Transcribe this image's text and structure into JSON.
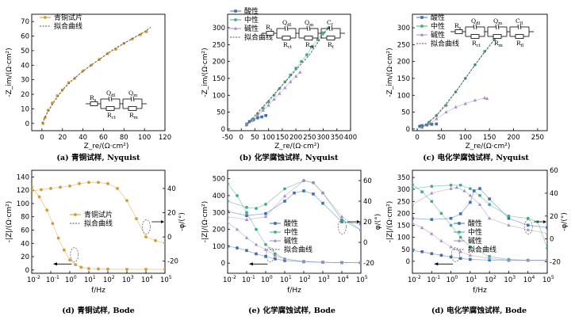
{
  "colors": {
    "bronze": "#d49a35",
    "acid": "#3c6fb4",
    "neutral": "#41ad84",
    "alkaline": "#a98ac8",
    "fit": "#555555"
  },
  "panels": [
    {
      "id": "a",
      "kind": "nyquist",
      "caption": "(a) 青铜试样, Nyquist",
      "xlabel": "Z_re/(Ω·cm²)",
      "ylabel": "-Z_im/(Ω·cm²)",
      "xlim": [
        -10,
        120
      ],
      "ylim": [
        -5,
        75
      ],
      "xticks": [
        0,
        20,
        40,
        60,
        80,
        100,
        120
      ],
      "yticks": [
        0,
        10,
        20,
        30,
        40,
        50,
        60,
        70
      ],
      "legend": [
        "青铜试片",
        "拟合曲线"
      ],
      "circuit": [
        "Rs",
        "Qdl",
        "Qm",
        "Rct",
        "Rm"
      ]
    },
    {
      "id": "b",
      "kind": "nyquist",
      "caption": "(b) 化学腐蚀试样, Nyquist",
      "xlabel": "Z_re/(Ω·cm²)",
      "ylabel": "-Z_im/(Ω·cm²)",
      "xlim": [
        -50,
        400
      ],
      "ylim": [
        -5,
        340
      ],
      "xticks": [
        -50,
        0,
        50,
        100,
        150,
        200,
        250,
        300,
        350,
        400
      ],
      "yticks": [
        0,
        50,
        100,
        150,
        200,
        250,
        300
      ],
      "legend": [
        "酸性",
        "中性",
        "碱性",
        "拟合曲线"
      ],
      "circuit": [
        "Rs",
        "Qdl",
        "Qm",
        "Cf",
        "Rct",
        "Rm",
        "Rf"
      ]
    },
    {
      "id": "c",
      "kind": "nyquist",
      "caption": "(c) 电化学腐蚀试样, Nyquist",
      "xlabel": "Z_re/(Ω·cm²)",
      "ylabel": "-Z_im/(Ω·cm²)",
      "xlim": [
        -10,
        270
      ],
      "ylim": [
        -5,
        340
      ],
      "xticks": [
        0,
        50,
        100,
        150,
        200,
        250
      ],
      "yticks": [
        0,
        50,
        100,
        150,
        200,
        250,
        300
      ],
      "legend": [
        "酸性",
        "中性",
        "碱性",
        "拟合曲线"
      ],
      "circuit": [
        "Rs",
        "Qdl",
        "Qm",
        "Cfl",
        "Rct",
        "Rm",
        "Rfl"
      ]
    },
    {
      "id": "d",
      "kind": "bode",
      "caption": "(d) 青铜试样, Bode",
      "xlabel": "f/Hz",
      "ylabel": "-|Z|/(Ω·cm²)",
      "y2label": "-φ/(°)",
      "ylim": [
        -5,
        150
      ],
      "y2lim": [
        -30,
        55
      ],
      "yticks": [
        0,
        20,
        40,
        60,
        80,
        100,
        120,
        140
      ],
      "y2ticks": [
        -20,
        0,
        20,
        40
      ],
      "legend": [
        "青铜试片",
        "拟合曲线"
      ]
    },
    {
      "id": "e",
      "kind": "bode",
      "caption": "(e) 化学腐蚀试样, Bode",
      "xlabel": "f/Hz",
      "ylabel": "-|Z|/(Ω·cm²)",
      "y2label": "φ/(°)",
      "ylim": [
        -60,
        550
      ],
      "y2lim": [
        -30,
        70
      ],
      "yticks": [
        0,
        100,
        200,
        300,
        400,
        500
      ],
      "y2ticks": [
        -20,
        0,
        20,
        40,
        60
      ],
      "legend": [
        "酸性",
        "中性",
        "碱性",
        "拟合曲线"
      ]
    },
    {
      "id": "f",
      "kind": "bode",
      "caption": "(d) 电化学腐蚀试样, Bode",
      "xlabel": "f/Hz",
      "ylabel": "-|Z|/(Ω·cm²)",
      "y2label": "-φ/(°)",
      "ylim": [
        -50,
        380
      ],
      "y2lim": [
        -30,
        60
      ],
      "yticks": [
        0,
        50,
        100,
        150,
        200,
        250,
        300,
        350
      ],
      "y2ticks": [
        -20,
        0,
        20,
        40,
        60
      ],
      "legend": [
        "酸性",
        "中性",
        "碱性",
        "拟合曲线"
      ]
    }
  ],
  "chart_data": [
    {
      "type": "scatter",
      "panel": "a",
      "series": [
        {
          "name": "青铜试片",
          "x": [
            1,
            3,
            6,
            10,
            15,
            20,
            26,
            32,
            40,
            48,
            56,
            64,
            72,
            80,
            88,
            96,
            102
          ],
          "y": [
            0,
            4,
            9,
            14,
            19,
            23,
            28,
            31,
            36,
            40,
            44,
            48,
            51,
            55,
            58,
            61,
            63
          ]
        },
        {
          "name": "拟合曲线",
          "x": [
            0,
            5,
            12,
            20,
            30,
            40,
            50,
            60,
            70,
            80,
            90,
            100,
            106
          ],
          "y": [
            0,
            7,
            15,
            23,
            30,
            36,
            41,
            46,
            51,
            55,
            59,
            63,
            66
          ]
        }
      ]
    },
    {
      "type": "scatter",
      "panel": "b",
      "series": [
        {
          "name": "酸性",
          "x": [
            20,
            30,
            45,
            60,
            75,
            90
          ],
          "y": [
            15,
            22,
            28,
            33,
            36,
            40
          ]
        },
        {
          "name": "中性",
          "x": [
            20,
            40,
            60,
            80,
            100,
            120,
            140,
            160,
            180,
            200,
            220,
            240,
            260,
            280,
            300,
            320
          ],
          "y": [
            15,
            28,
            45,
            62,
            80,
            100,
            120,
            140,
            160,
            180,
            200,
            220,
            245,
            265,
            285,
            300
          ]
        },
        {
          "name": "碱性",
          "x": [
            20,
            40,
            60,
            80,
            100,
            120,
            140,
            160,
            180,
            200,
            215
          ],
          "y": [
            12,
            25,
            40,
            55,
            70,
            88,
            105,
            122,
            140,
            156,
            168
          ]
        },
        {
          "name": "拟合曲线",
          "x": [
            15,
            50,
            100,
            150,
            200,
            250,
            300,
            320
          ],
          "y": [
            8,
            40,
            85,
            130,
            175,
            220,
            280,
            300
          ]
        }
      ]
    },
    {
      "type": "scatter",
      "panel": "c",
      "series": [
        {
          "name": "酸性",
          "x": [
            5,
            10,
            20,
            30,
            40
          ],
          "y": [
            8,
            10,
            12,
            14,
            15
          ]
        },
        {
          "name": "中性",
          "x": [
            10,
            25,
            40,
            60,
            80,
            100,
            120,
            140,
            160
          ],
          "y": [
            5,
            20,
            40,
            70,
            110,
            150,
            190,
            230,
            265
          ]
        },
        {
          "name": "碱性",
          "x": [
            10,
            25,
            40,
            60,
            80,
            100,
            120,
            140,
            145
          ],
          "y": [
            5,
            15,
            30,
            50,
            65,
            75,
            85,
            92,
            90
          ]
        },
        {
          "name": "拟合曲线",
          "x": [
            10,
            40,
            80,
            120,
            160
          ],
          "y": [
            5,
            40,
            110,
            190,
            265
          ]
        }
      ]
    },
    {
      "type": "line",
      "panel": "d",
      "x_scale": "log",
      "xlim": [
        -2,
        5
      ],
      "xticks": [
        -2,
        -1,
        0,
        1,
        2,
        3,
        4,
        5
      ],
      "series": [
        {
          "name": "青铜试片 |Z|",
          "axis": "left",
          "log_f": [
            -2,
            -1.6,
            -1.2,
            -0.9,
            -0.6,
            -0.3,
            0,
            0.3,
            0.6,
            1,
            1.5,
            2,
            3,
            4,
            5
          ],
          "values": [
            125,
            110,
            90,
            70,
            48,
            30,
            15,
            8,
            4,
            2,
            1.5,
            1.2,
            1,
            1,
            1
          ]
        },
        {
          "name": "青铜试片 -φ",
          "axis": "right",
          "log_f": [
            -2,
            -1.5,
            -1,
            -0.5,
            0,
            0.5,
            1,
            1.5,
            2,
            2.5,
            3,
            3.5,
            4,
            4.5,
            5
          ],
          "values": [
            38,
            39,
            40,
            41,
            42,
            44,
            45,
            45,
            44,
            40,
            30,
            15,
            0,
            -3,
            -5
          ]
        }
      ]
    },
    {
      "type": "line",
      "panel": "e",
      "x_scale": "log",
      "xlim": [
        -2,
        5
      ],
      "xticks": [
        -2,
        -1,
        0,
        1,
        2,
        3,
        4,
        5
      ],
      "series": [
        {
          "name": "酸性 |Z|",
          "axis": "left",
          "log_f": [
            -2,
            -1.5,
            -1,
            -0.5,
            0,
            0.5,
            1,
            2,
            3,
            4,
            5
          ],
          "values": [
            100,
            90,
            75,
            55,
            40,
            25,
            15,
            8,
            5,
            3,
            3
          ]
        },
        {
          "name": "中性 |Z|",
          "axis": "left",
          "log_f": [
            -2,
            -1.5,
            -1,
            -0.5,
            0,
            0.5,
            1,
            2,
            3,
            4,
            5
          ],
          "values": [
            470,
            400,
            300,
            200,
            110,
            55,
            25,
            10,
            5,
            3,
            3
          ]
        },
        {
          "name": "碱性 |Z|",
          "axis": "left",
          "log_f": [
            -2,
            -1.5,
            -1,
            -0.5,
            0,
            0.5,
            1,
            2,
            3,
            4,
            5
          ],
          "values": [
            240,
            200,
            150,
            110,
            80,
            45,
            25,
            10,
            5,
            3,
            3
          ]
        },
        {
          "name": "酸性 φ",
          "axis": "right",
          "log_f": [
            -2,
            -1,
            0,
            1,
            1.5,
            2,
            2.5,
            3,
            4,
            5
          ],
          "values": [
            30,
            26,
            28,
            40,
            48,
            50,
            47,
            38,
            20,
            18
          ]
        },
        {
          "name": "中性 φ",
          "axis": "right",
          "log_f": [
            -2,
            -1,
            -0.5,
            0,
            1,
            2,
            2.5,
            3,
            4,
            5
          ],
          "values": [
            40,
            34,
            33,
            37,
            52,
            60,
            58,
            48,
            22,
            12
          ]
        },
        {
          "name": "碱性 φ",
          "axis": "right",
          "log_f": [
            -2,
            -1,
            0,
            1,
            2,
            2.5,
            3,
            4,
            5
          ],
          "values": [
            25,
            22,
            25,
            45,
            60,
            58,
            48,
            25,
            12
          ]
        }
      ]
    },
    {
      "type": "line",
      "panel": "f",
      "x_scale": "log",
      "xlim": [
        -2,
        5
      ],
      "xticks": [
        -2,
        -1,
        0,
        1,
        2,
        3,
        4,
        5
      ],
      "series": [
        {
          "name": "酸性 |Z|",
          "axis": "left",
          "log_f": [
            -2,
            -1.5,
            -1,
            -0.5,
            0,
            0.5,
            1,
            2,
            3,
            4,
            5
          ],
          "values": [
            45,
            40,
            32,
            25,
            18,
            12,
            8,
            5,
            4,
            4,
            4
          ]
        },
        {
          "name": "中性 |Z|",
          "axis": "left",
          "log_f": [
            -2,
            -1.5,
            -1,
            -0.5,
            0,
            0.5,
            1,
            2,
            3,
            4,
            5
          ],
          "values": [
            320,
            290,
            250,
            200,
            150,
            100,
            60,
            20,
            8,
            4,
            4
          ]
        },
        {
          "name": "碱性 |Z|",
          "axis": "left",
          "log_f": [
            -2,
            -1.5,
            -1,
            -0.5,
            0,
            0.5,
            1,
            2,
            3,
            4,
            5
          ],
          "values": [
            160,
            140,
            115,
            85,
            60,
            40,
            25,
            12,
            5,
            4,
            4
          ]
        },
        {
          "name": "酸性 -φ",
          "axis": "right",
          "log_f": [
            -2,
            -1,
            0,
            0.5,
            1,
            1.2,
            1.5,
            2,
            3,
            4,
            5
          ],
          "values": [
            18,
            17,
            18,
            22,
            32,
            42,
            44,
            35,
            18,
            12,
            10
          ]
        },
        {
          "name": "中性 -φ",
          "axis": "right",
          "log_f": [
            -2,
            -1,
            0,
            0.5,
            1,
            1.5,
            2,
            3,
            4,
            4.5,
            5
          ],
          "values": [
            44,
            46,
            47,
            47,
            44,
            38,
            30,
            20,
            18,
            15,
            -8
          ]
        },
        {
          "name": "碱性 -φ",
          "axis": "right",
          "log_f": [
            -2,
            -1,
            0,
            0.3,
            0.7,
            1,
            1.5,
            2,
            3,
            4,
            5
          ],
          "values": [
            30,
            40,
            44,
            45,
            42,
            38,
            30,
            18,
            12,
            8,
            5
          ]
        }
      ]
    }
  ]
}
